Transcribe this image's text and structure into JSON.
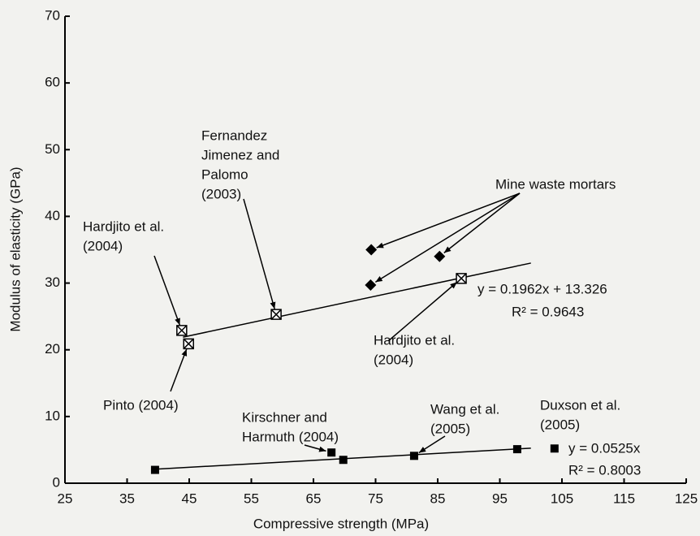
{
  "chart_data": {
    "type": "scatter",
    "x_label": "Compressive strength (MPa)",
    "y_label": "Modulus of elasticity (GPa)",
    "xlim": [
      25,
      125
    ],
    "xticks": [
      25,
      35,
      45,
      55,
      65,
      75,
      85,
      95,
      105,
      115,
      125
    ],
    "ylim": [
      0,
      70
    ],
    "yticks": [
      0,
      10,
      20,
      30,
      40,
      50,
      60,
      70
    ],
    "grid": false,
    "series": [
      {
        "marker": "square",
        "color": "#000000",
        "x": [
          39.5,
          67.9,
          69.8,
          81.2,
          97.8,
          103.8
        ],
        "values": [
          2.0,
          4.6,
          3.5,
          4.1,
          5.1,
          5.2
        ]
      },
      {
        "marker": "crossed-square",
        "color": "#000000",
        "x": [
          43.8,
          44.9,
          59,
          88.8
        ],
        "values": [
          22.9,
          20.9,
          25.3,
          30.7
        ]
      },
      {
        "name": "Mine waste mortars",
        "marker": "diamond",
        "color": "#000000",
        "x": [
          74.3,
          74.2,
          85.3
        ],
        "values": [
          35.0,
          29.7,
          34.0
        ]
      }
    ],
    "fits": [
      {
        "equation": "y = 0.1962x + 13.326",
        "r2": "R² = 0.9643",
        "x": [
          44,
          100
        ],
        "values": [
          21.9,
          33.0
        ]
      },
      {
        "equation": "y = 0.0525x",
        "r2": "R² = 0.8003",
        "x": [
          39.5,
          100
        ],
        "values": [
          2.1,
          5.25
        ]
      }
    ],
    "annotations": [
      [
        "Fernandez",
        "Jimenez and",
        "Palomo",
        "(2003)"
      ],
      [
        "Hardjito et al.",
        "(2004)"
      ],
      [
        "Pinto (2004)"
      ],
      [
        "Hardjito et al.",
        "(2004)"
      ],
      [
        "Kirschner and",
        "Harmuth (2004)"
      ],
      [
        "Wang et al.",
        "(2005)"
      ],
      [
        "Duxson et al.",
        "(2005)"
      ]
    ]
  }
}
